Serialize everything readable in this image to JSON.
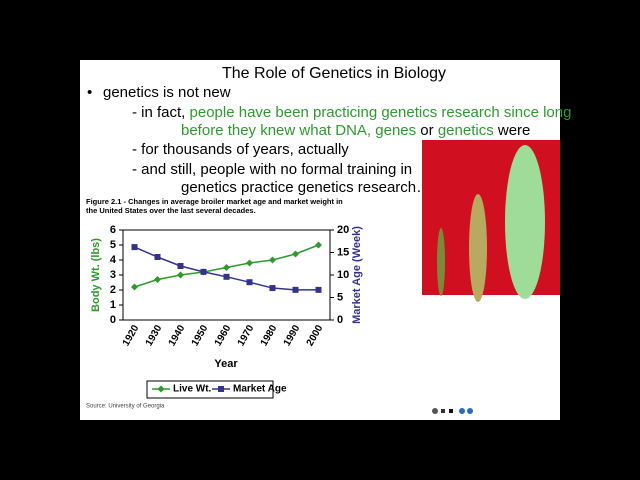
{
  "slide": {
    "title": "The Role of Genetics in Biology",
    "bullet": "genetics is not new",
    "sub1": [
      "- in fact, ",
      "people have been practicing genetics research since long",
      "before they knew what DNA, genes",
      " or ",
      "genetics",
      " were"
    ],
    "sub2": "- for thousands of years, actually",
    "sub3": [
      "- and still, people with no formal training in",
      "genetics practice genetics research…"
    ]
  },
  "chart_data": {
    "type": "line",
    "caption": [
      "Figure 2.1 - Changes in average broiler market age and market weight in",
      "the United States over the last several decades."
    ],
    "xlabel": "Year",
    "ylabel": "Body Wt. (lbs)",
    "y2label": "Market Age (Week)",
    "source": "Source: University of Georgia",
    "categories": [
      "1920",
      "1930",
      "1940",
      "1950",
      "1960",
      "1970",
      "1980",
      "1990",
      "2000"
    ],
    "series": [
      {
        "name": "Live Wt.",
        "color": "#2e9a2e",
        "values": [
          2.2,
          2.7,
          3.0,
          3.2,
          3.5,
          3.8,
          4.0,
          4.4,
          5.0
        ]
      },
      {
        "name": "Market Age",
        "color": "#33338f",
        "axis": "y2",
        "values": [
          16.2,
          14,
          12,
          10.7,
          9.6,
          8.4,
          7.1,
          6.7,
          6.7
        ]
      }
    ],
    "ylim": [
      0,
      6
    ],
    "yticks": [
      0,
      1,
      2,
      3,
      4,
      5,
      6
    ],
    "y2lim": [
      0,
      20
    ],
    "y2ticks": [
      0,
      5,
      10,
      15,
      20
    ]
  }
}
